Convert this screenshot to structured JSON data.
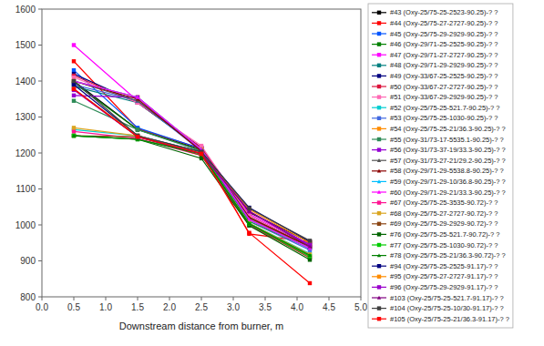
{
  "chart_data": {
    "type": "line",
    "xlabel": "Downstream distance from burner, m",
    "x": [
      0.5,
      1.5,
      2.5,
      3.25,
      4.2
    ],
    "xlim": [
      0.0,
      5.0
    ],
    "ylim": [
      800,
      1600
    ],
    "xticks": [
      {
        "value": 0.0,
        "label": "0.0"
      },
      0.5,
      {
        "value": 1.0,
        "label": "1.0"
      },
      1.5,
      {
        "value": 2.0,
        "label": "2.0"
      },
      2.5,
      {
        "value": 3.0,
        "label": "3.0"
      },
      3.5,
      {
        "value": 4.0,
        "label": "4.0"
      },
      4.5,
      {
        "value": 5.0,
        "label": "5.0"
      }
    ],
    "yticks": [
      800,
      900,
      1000,
      1100,
      1200,
      1300,
      1400,
      1500,
      1600
    ],
    "grid": false,
    "legend": "right",
    "series": [
      {
        "name": "#43 (Oxy-25/75-25-2523-90.25)-? ?",
        "color": "#000000",
        "marker": "square",
        "values": [
          1400,
          1265,
          1210,
          1035,
          952
        ]
      },
      {
        "name": "#44 (Oxy-25/75-27-2727-90.25)-? ?",
        "color": "#FF0000",
        "marker": "square",
        "values": [
          1455,
          1268,
          1212,
          975,
          953
        ]
      },
      {
        "name": "#45 (Oxy-25/75-29-2929-90.25)-? ?",
        "color": "#0055FF",
        "marker": "square",
        "values": [
          1430,
          1270,
          1212,
          1020,
          945
        ]
      },
      {
        "name": "#46 (Oxy-29/71-25-2525-90.25)-? ?",
        "color": "#008000",
        "marker": "square",
        "values": [
          1395,
          1265,
          1207,
          1015,
          940
        ]
      },
      {
        "name": "#47 (Oxy-29/71-27-2727-90.25)-? ?",
        "color": "#FF00FF",
        "marker": "square",
        "values": [
          1500,
          1345,
          1215,
          1030,
          945
        ]
      },
      {
        "name": "#48 (Oxy-29/71-29-2929-90.25)-? ?",
        "color": "#008080",
        "marker": "square",
        "values": [
          1385,
          1340,
          1210,
          1020,
          940
        ]
      },
      {
        "name": "#49 (Oxy-33/67-25-2525-90.25)-? ?",
        "color": "#000080",
        "marker": "square",
        "values": [
          1420,
          1340,
          1215,
          1025,
          940
        ]
      },
      {
        "name": "#50 (Oxy-33/67-27-2727-90.25)-? ?",
        "color": "#DC143C",
        "marker": "square",
        "values": [
          1415,
          1340,
          1215,
          1025,
          940
        ]
      },
      {
        "name": "#51 (Oxy-33/67-29-2929-90.25)-? ?",
        "color": "#FF69B4",
        "marker": "square",
        "values": [
          1410,
          1340,
          1220,
          1025,
          940
        ]
      },
      {
        "name": "#52 (Oxy-25/75-25-521.7-90.25)-? ?",
        "color": "#00CED1",
        "marker": "square",
        "values": [
          1265,
          1248,
          1198,
          1005,
          920
        ]
      },
      {
        "name": "#53 (Oxy-25/75-25-1030-90.25)-? ?",
        "color": "#4169E1",
        "marker": "square",
        "values": [
          1390,
          1345,
          1205,
          1010,
          930
        ]
      },
      {
        "name": "#54 (Oxy-25/75-25-21/36.3-90.25)-? ?",
        "color": "#FF8C00",
        "marker": "square",
        "values": [
          1400,
          1355,
          1210,
          1018,
          940
        ]
      },
      {
        "name": "#55 (Oxy-31/73-17-5535.1-90.25)-? ?",
        "color": "#2E8B57",
        "marker": "square",
        "values": [
          1345,
          1265,
          1205,
          1010,
          935
        ]
      },
      {
        "name": "#56 (Oxy-31/73-37-19/33.3-90.25)-? ?",
        "color": "#9400D3",
        "marker": "square",
        "values": [
          1360,
          1355,
          1205,
          1015,
          935
        ]
      },
      {
        "name": "#57 (Oxy-31/73-27-21/29.2-90.25)-? ?",
        "color": "#555555",
        "marker": "triangle",
        "values": [
          1400,
          1345,
          1210,
          1020,
          940
        ]
      },
      {
        "name": "#58 (Oxy-29/71-29-5538.8-90.25)-? ?",
        "color": "#8B0000",
        "marker": "triangle",
        "values": [
          1400,
          1350,
          1205,
          1020,
          940
        ]
      },
      {
        "name": "#59 (Oxy-29/71-29-10/36.8-90.25)-? ?",
        "color": "#00BFFF",
        "marker": "triangle",
        "values": [
          1400,
          1355,
          1210,
          1015,
          935
        ]
      },
      {
        "name": "#60 (Oxy-29/71-29-21/33.3-90.25)-? ?",
        "color": "#FF00FF",
        "marker": "triangle",
        "values": [
          1400,
          1355,
          1210,
          1015,
          935
        ]
      },
      {
        "name": "#67 (Oxy-25/75-25-3535-90.72)-? ?",
        "color": "#FF1493",
        "marker": "square",
        "values": [
          1260,
          1240,
          1193,
          998,
          912
        ]
      },
      {
        "name": "#68 (Oxy-25/75-27-2727-90.72)-? ?",
        "color": "#DAA520",
        "marker": "square",
        "values": [
          1270,
          1248,
          1198,
          1005,
          918
        ]
      },
      {
        "name": "#69 (Oxy-25/75-29-2929-90.72)-? ?",
        "color": "#8B4513",
        "marker": "square",
        "values": [
          1248,
          1245,
          1193,
          1002,
          908
        ]
      },
      {
        "name": "#76 (Oxy-25/75-25-521.7-90.72)-? ?",
        "color": "#006400",
        "marker": "square",
        "values": [
          1248,
          1238,
          1185,
          998,
          903
        ]
      },
      {
        "name": "#77 (Oxy-25/75-25-1030-90.72)-? ?",
        "color": "#00CC00",
        "marker": "square",
        "values": [
          1248,
          1238,
          1198,
          1003,
          913
        ]
      },
      {
        "name": "#78 (Oxy-25/75-25-21/36.3-90.72)-? ?",
        "color": "#008000",
        "marker": "triangle",
        "values": [
          1248,
          1238,
          1198,
          1003,
          916
        ]
      },
      {
        "name": "#94 (Oxy-25/75-25-2525-91.17)-? ?",
        "color": "#000080",
        "marker": "square",
        "values": [
          1390,
          1248,
          1203,
          1048,
          953
        ]
      },
      {
        "name": "#95 (Oxy-25/75-27-2727-91.17)-? ?",
        "color": "#FF8C00",
        "marker": "square",
        "values": [
          1378,
          1248,
          1200,
          1043,
          950
        ]
      },
      {
        "name": "#96 (Oxy-25/75-29-2929-91.17)-? ?",
        "color": "#9900CC",
        "marker": "square",
        "values": [
          1375,
          1245,
          1198,
          1038,
          945
        ]
      },
      {
        "name": "#103 (Oxy-25/75-25-521.7-91.17)-? ?",
        "color": "#800080",
        "marker": "triangle",
        "values": [
          1378,
          1245,
          1198,
          1038,
          940
        ]
      },
      {
        "name": "#104 (Oxy-25/75-25-10/30-91.17)-? ?",
        "color": "#404040",
        "marker": "square",
        "values": [
          1400,
          1248,
          1203,
          1046,
          956
        ]
      },
      {
        "name": "#105 (Oxy-25/75-25-21/36.3-91.17)-? ?",
        "color": "#FF0000",
        "marker": "square",
        "values": [
          1378,
          1245,
          1198,
          978,
          838
        ]
      }
    ]
  }
}
